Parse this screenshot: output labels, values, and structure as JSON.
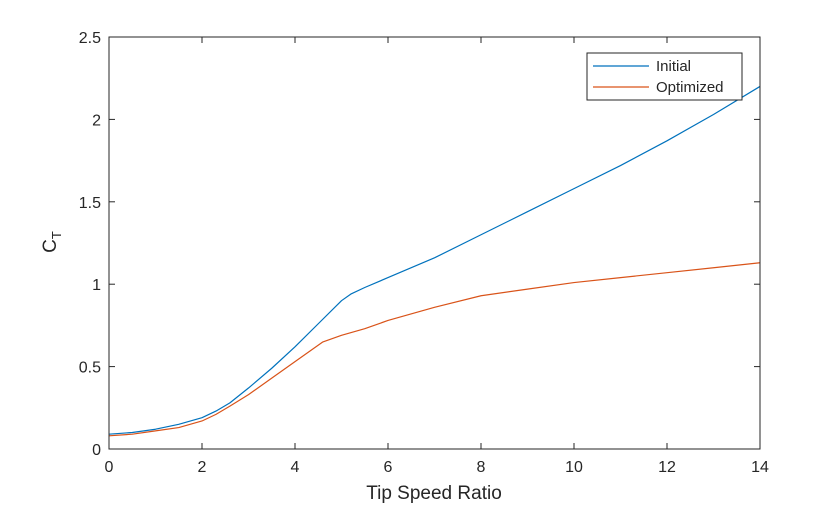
{
  "chart_data": {
    "type": "line",
    "title": "",
    "xlabel": "Tip Speed Ratio",
    "ylabel": {
      "main": "C",
      "sub": "T"
    },
    "xlim": [
      0,
      14
    ],
    "ylim": [
      0,
      2.5
    ],
    "xticks": [
      0,
      2,
      4,
      6,
      8,
      10,
      12,
      14
    ],
    "yticks": [
      0,
      0.5,
      1,
      1.5,
      2,
      2.5
    ],
    "xtick_labels": [
      "0",
      "2",
      "4",
      "6",
      "8",
      "10",
      "12",
      "14"
    ],
    "ytick_labels": [
      "0",
      "0.5",
      "1",
      "1.5",
      "2",
      "2.5"
    ],
    "grid": false,
    "legend": "top-right",
    "series": [
      {
        "name": "Initial",
        "color": "#0072BD",
        "x": [
          0,
          0.5,
          1,
          1.5,
          2,
          2.3,
          2.6,
          3,
          3.5,
          4,
          4.5,
          5,
          5.2,
          5.5,
          6,
          7,
          8,
          9,
          10,
          11,
          12,
          13,
          14
        ],
        "y": [
          0.09,
          0.1,
          0.12,
          0.15,
          0.19,
          0.23,
          0.28,
          0.37,
          0.49,
          0.62,
          0.76,
          0.9,
          0.94,
          0.98,
          1.04,
          1.16,
          1.3,
          1.44,
          1.58,
          1.72,
          1.87,
          2.03,
          2.2
        ]
      },
      {
        "name": "Optimized",
        "color": "#D95319",
        "x": [
          0,
          0.5,
          1,
          1.5,
          2,
          2.3,
          2.6,
          3,
          3.5,
          4,
          4.3,
          4.6,
          5,
          5.5,
          6,
          7,
          8,
          9,
          10,
          11,
          12,
          13,
          14
        ],
        "y": [
          0.08,
          0.09,
          0.11,
          0.13,
          0.17,
          0.21,
          0.26,
          0.33,
          0.43,
          0.53,
          0.59,
          0.65,
          0.69,
          0.73,
          0.78,
          0.86,
          0.93,
          0.97,
          1.01,
          1.04,
          1.07,
          1.1,
          1.13
        ]
      }
    ]
  }
}
